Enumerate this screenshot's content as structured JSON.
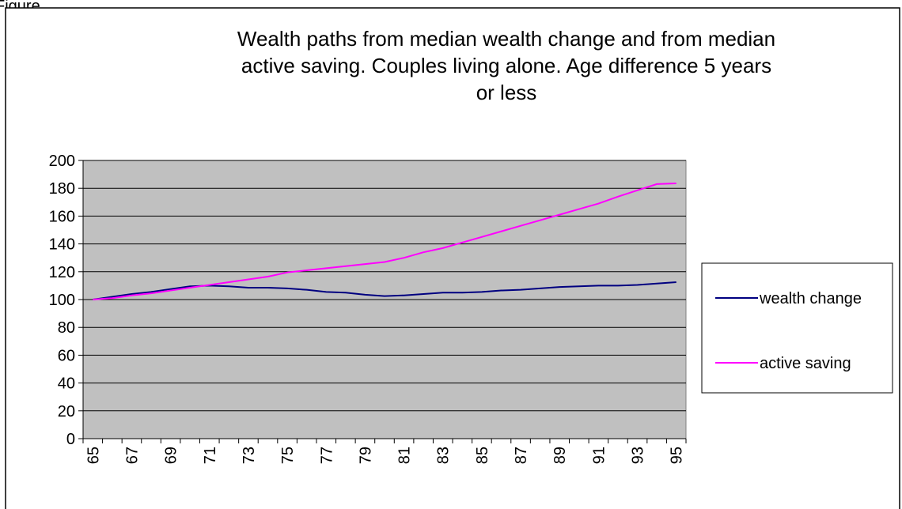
{
  "caption": "Figure",
  "chart_data": {
    "type": "line",
    "title": [
      "Wealth paths from median wealth change and from median",
      "active saving.  Couples living alone. Age difference 5 years",
      "or less"
    ],
    "categories": [
      "65",
      null,
      "67",
      null,
      "69",
      null,
      "71",
      null,
      "73",
      null,
      "75",
      null,
      "77",
      null,
      "79",
      null,
      "81",
      null,
      "83",
      null,
      "85",
      null,
      "87",
      null,
      "89",
      null,
      "91",
      null,
      "93",
      null,
      "95"
    ],
    "series": [
      {
        "name": "wealth change",
        "color": "#000080",
        "values": [
          100,
          102,
          104,
          105.5,
          107.5,
          109.5,
          110,
          109.5,
          108.5,
          108.5,
          108,
          107,
          105.5,
          105,
          103.5,
          102.5,
          103,
          104,
          105,
          105,
          105.5,
          106.5,
          107,
          108,
          109,
          109.5,
          110,
          110,
          110.5,
          111.5,
          112.5
        ]
      },
      {
        "name": "active saving",
        "color": "#ff00ff",
        "values": [
          100,
          101,
          103,
          104.5,
          106.5,
          108.5,
          110.5,
          112.5,
          114.5,
          116.5,
          119.5,
          121,
          122.5,
          124,
          125.5,
          127,
          130,
          134,
          137,
          141,
          145,
          149,
          153,
          157,
          161,
          165,
          169,
          174,
          178.5,
          183,
          183.5
        ]
      }
    ],
    "ylim": [
      0,
      200
    ],
    "yticks": [
      0,
      20,
      40,
      60,
      80,
      100,
      120,
      140,
      160,
      180,
      200
    ],
    "grid": true,
    "plot_background": "#c0c0c0",
    "legend": "right"
  }
}
